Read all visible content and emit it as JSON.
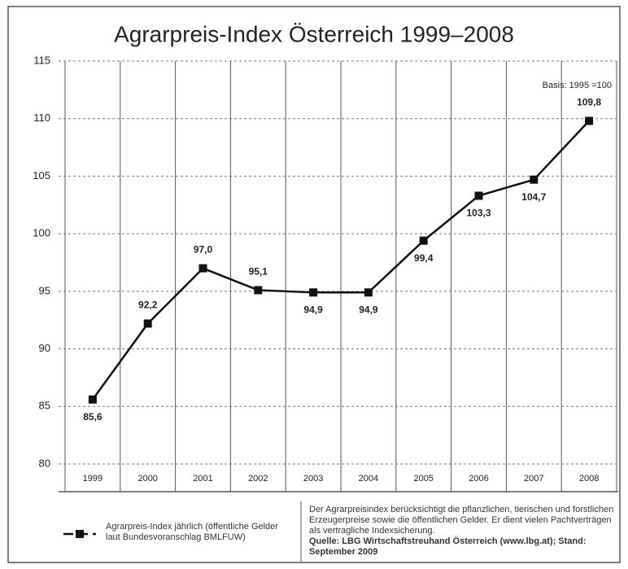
{
  "chart_data": {
    "type": "line",
    "title": "Agrarpreis-Index Österreich 1999–2008",
    "annotation": "Basis: 1995 =100",
    "categories": [
      "1999",
      "2000",
      "2001",
      "2002",
      "2003",
      "2004",
      "2005",
      "2006",
      "2007",
      "2008"
    ],
    "series": [
      {
        "name": "Agrarpreis-Index jährlich (öffentliche Gelder laut Bundesvoranschlag BMLFUW)",
        "color": "#111111",
        "values": [
          85.6,
          92.2,
          97.0,
          95.1,
          94.9,
          94.9,
          99.4,
          103.3,
          104.7,
          109.8
        ],
        "value_labels": [
          "85,6",
          "92,2",
          "97,0",
          "95,1",
          "94,9",
          "94,9",
          "99,4",
          "103,3",
          "104,7",
          "109,8"
        ]
      }
    ],
    "ylim": [
      80,
      115
    ],
    "yticks": [
      80,
      85,
      90,
      95,
      100,
      105,
      110,
      115
    ],
    "grid": true,
    "description": "Der Agrarpreisindex berücksichtigt die pflanzlichen, tierischen und forstlichen Erzeugerpreise sowie die öffentlichen Gelder. Er dient vielen Pachtverträgen als vertragliche Indexsicherung.",
    "source": "Quelle: LBG Wirtschaftstreuhand Österreich (www.lbg.at); Stand: September 2009"
  }
}
